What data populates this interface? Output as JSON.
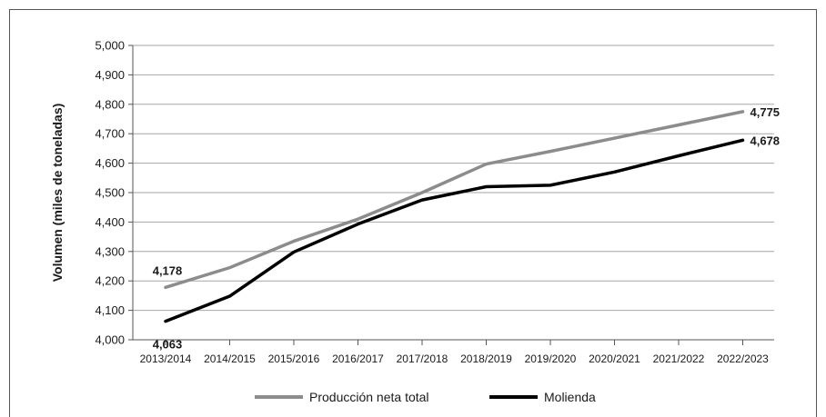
{
  "chart_data": {
    "type": "line",
    "title": "",
    "xlabel": "",
    "ylabel": "Volumen (miles de toneladas)",
    "ylim": [
      4000,
      5000
    ],
    "yticks": [
      "4,000",
      "4,100",
      "4,200",
      "4,300",
      "4,400",
      "4,500",
      "4,600",
      "4,700",
      "4,800",
      "4,900",
      "5,000"
    ],
    "grid": true,
    "legend_position": "bottom",
    "categories": [
      "2013/2014",
      "2014/2015",
      "2015/2016",
      "2016/2017",
      "2017/2018",
      "2018/2019",
      "2019/2020",
      "2020/2021",
      "2021/2022",
      "2022/2023"
    ],
    "series": [
      {
        "name": "Producción neta total",
        "color": "#8c8c8c",
        "values": [
          4178,
          4245,
          4335,
          4410,
          4500,
          4597,
          4640,
          4685,
          4730,
          4775
        ],
        "labels": [
          {
            "index": 0,
            "text": "4,178",
            "position": "above"
          },
          {
            "index": 9,
            "text": "4,775",
            "position": "right"
          }
        ]
      },
      {
        "name": "Molienda",
        "color": "#000000",
        "values": [
          4063,
          4148,
          4298,
          4393,
          4475,
          4520,
          4525,
          4570,
          4625,
          4678
        ],
        "labels": [
          {
            "index": 0,
            "text": "4,063",
            "position": "below"
          },
          {
            "index": 9,
            "text": "4,678",
            "position": "right"
          }
        ]
      }
    ]
  }
}
